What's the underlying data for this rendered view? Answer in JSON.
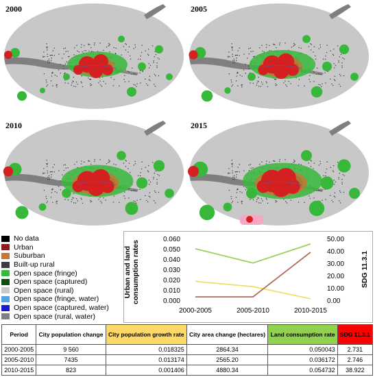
{
  "panels": [
    {
      "year": "2000",
      "spread": 0.0
    },
    {
      "year": "2005",
      "spread": 0.3
    },
    {
      "year": "2010",
      "spread": 0.6
    },
    {
      "year": "2015",
      "spread": 1.0
    }
  ],
  "legend": [
    {
      "label": "No data",
      "color": "#000000"
    },
    {
      "label": "Urban",
      "color": "#8b1a1a"
    },
    {
      "label": "Suburban",
      "color": "#c87533"
    },
    {
      "label": "Built-up rural",
      "color": "#3c3c3c"
    },
    {
      "label": "Open space (fringe)",
      "color": "#37b83a"
    },
    {
      "label": "Open space (captured)",
      "color": "#0d4d0d"
    },
    {
      "label": "Open space (rural)",
      "color": "#c8c8c8"
    },
    {
      "label": "Open space (fringe, water)",
      "color": "#5aa0e6"
    },
    {
      "label": "Open space (captured, water)",
      "color": "#1a1acc"
    },
    {
      "label": "Open space (rural, water)",
      "color": "#7f7f7f"
    }
  ],
  "chart_data": {
    "type": "line",
    "categories": [
      "2000-2005",
      "2005-2010",
      "2010-2015"
    ],
    "ylabel_left": "Urban and land consumption rates",
    "ylabel_right": "SDG 11.3.1",
    "ylim_left": [
      0,
      0.06
    ],
    "ylim_right": [
      0,
      50
    ],
    "left_ticks": [
      "0.000",
      "0.010",
      "0.020",
      "0.030",
      "0.040",
      "0.050",
      "0.060"
    ],
    "right_ticks": [
      "0.00",
      "10.00",
      "20.00",
      "30.00",
      "40.00",
      "50.00"
    ],
    "series": [
      {
        "axis": "left",
        "color": "#f0e06a",
        "values": [
          0.018325,
          0.013174,
          0.001406
        ]
      },
      {
        "axis": "left",
        "color": "#9ccf5e",
        "values": [
          0.050043,
          0.036172,
          0.054732
        ]
      },
      {
        "axis": "right",
        "color": "#b06a5a",
        "values": [
          2.731,
          2.746,
          38.922
        ]
      }
    ]
  },
  "table": {
    "headers": [
      {
        "text": "Period",
        "color": "#ffffff"
      },
      {
        "text": "City population change",
        "color": "#ffffff"
      },
      {
        "text": "City population growth rate",
        "color": "#ffd966"
      },
      {
        "text": "City area change (hectares)",
        "color": "#ffffff"
      },
      {
        "text": "Land consumption rate",
        "color": "#92d050"
      },
      {
        "text": "SDG 11.3.1",
        "color": "#ff0000"
      }
    ],
    "rows": [
      [
        "2000-2005",
        "9 560",
        "0.018325",
        "2864.34",
        "0.050043",
        "2.731"
      ],
      [
        "2005-2010",
        "7435",
        "0.013174",
        "2565.20",
        "0.036172",
        "2.746"
      ],
      [
        "2010-2015",
        "823",
        "0.001406",
        "4880.34",
        "0.054732",
        "38.922"
      ]
    ]
  }
}
